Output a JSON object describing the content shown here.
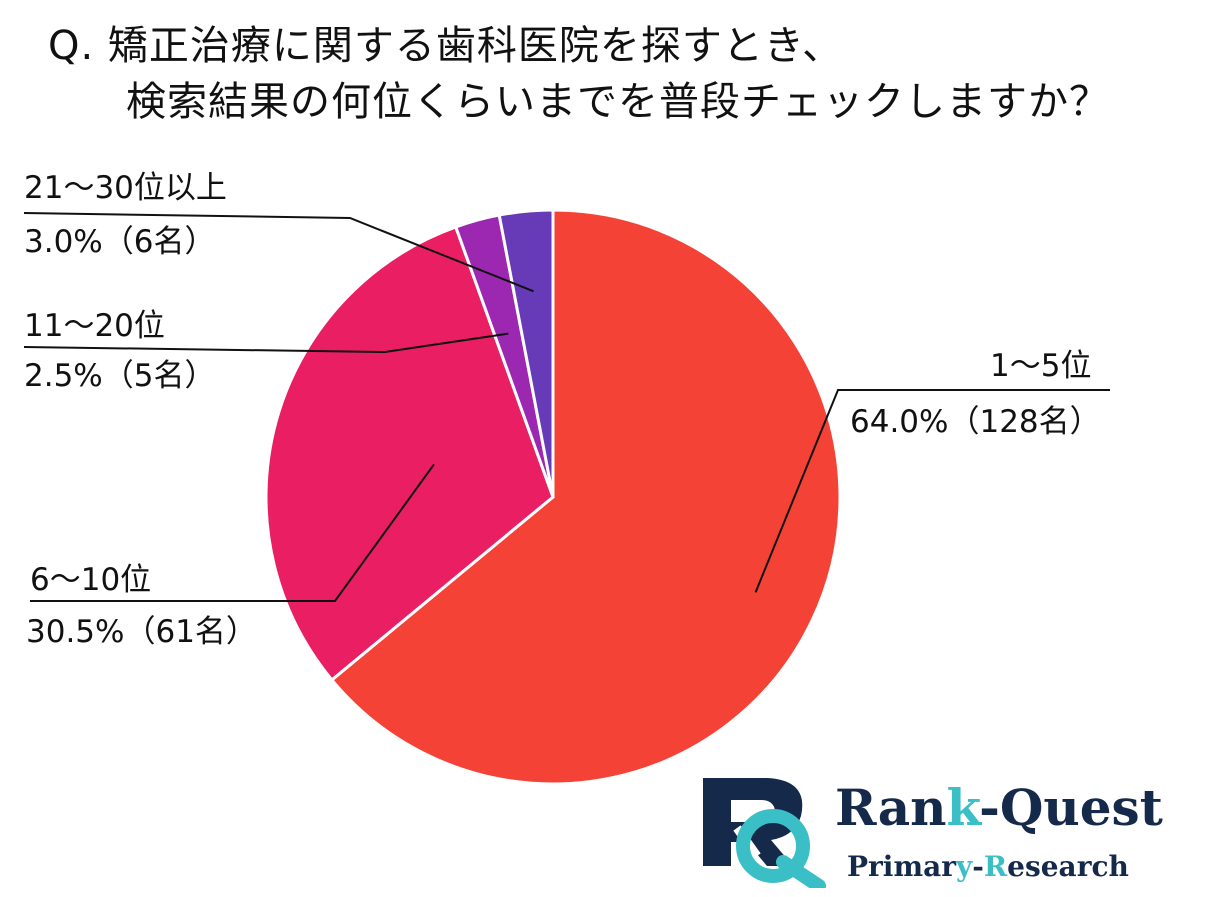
{
  "title": {
    "line1": "Q. 矯正治療に関する歯科医院を探すとき、",
    "line2": "検索結果の何位くらいまでを普段チェックしますか？"
  },
  "chart_data": {
    "type": "pie",
    "start": "top",
    "direction": "clockwise",
    "slices": [
      {
        "label": "1〜5位",
        "percent": 64.0,
        "count": 128,
        "value_text": "64.0%（128名）",
        "color": "#f44336"
      },
      {
        "label": "6〜10位",
        "percent": 30.5,
        "count": 61,
        "value_text": "30.5%（61名）",
        "color": "#e91e63"
      },
      {
        "label": "11〜20位",
        "percent": 2.5,
        "count": 5,
        "value_text": "2.5%（5名）",
        "color": "#9c27b0"
      },
      {
        "label": "21〜30位以上",
        "percent": 3.0,
        "count": 6,
        "value_text": "3.0%（6名）",
        "color": "#673ab7"
      }
    ]
  },
  "logo": {
    "name_part1": "Ran",
    "name_part2": "k",
    "name_part3": "-Quest",
    "sub_part1": "Primar",
    "sub_part2": "y",
    "sub_part3": "-",
    "sub_part4": "R",
    "sub_part5": "esearch",
    "colors": {
      "navy": "#15294a",
      "teal": "#3bbfc7"
    }
  }
}
